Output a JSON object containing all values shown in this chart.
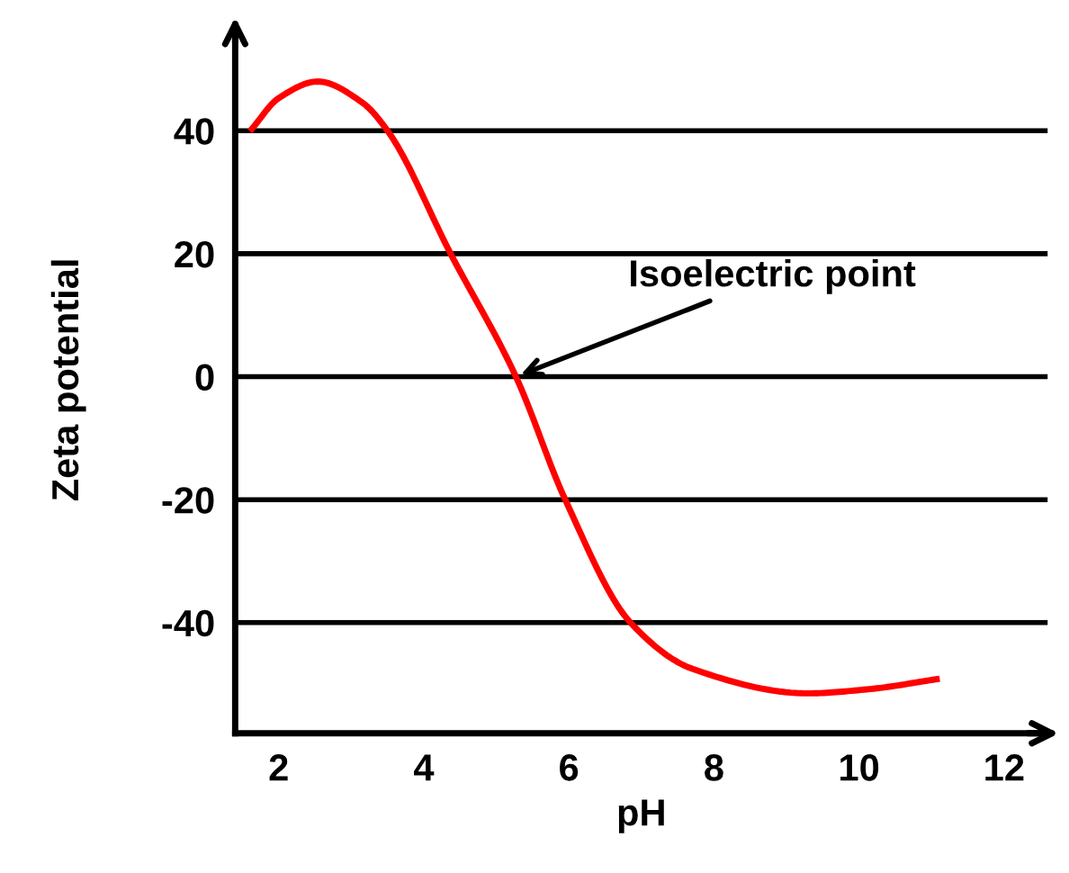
{
  "chart_data": {
    "type": "line",
    "xlabel": "pH",
    "ylabel": "Zeta potential",
    "x": [
      1.63,
      2.0,
      2.54,
      3.15,
      3.5,
      4.37,
      5.27,
      5.95,
      6.85,
      7.7,
      9.3,
      10.15,
      11.07
    ],
    "series": [
      {
        "color": "#ff0000",
        "values": [
          40.3,
          45.3,
          48,
          44.6,
          40,
          20,
          0,
          -20,
          -40,
          -47.5,
          -51.5,
          -50.8,
          -49.2
        ]
      }
    ],
    "xlim": [
      1.4,
      12.6
    ],
    "xticks": [
      2,
      4,
      6,
      8,
      10,
      12
    ],
    "ylim": [
      -58,
      57
    ],
    "yticks": [
      -40,
      -20,
      0,
      20,
      40
    ],
    "grid": "y",
    "marker": "none",
    "line_style": "solid",
    "legend": false,
    "annotations": [
      {
        "text": "Isoelectric point",
        "x": 5.27,
        "y": 0
      }
    ]
  }
}
